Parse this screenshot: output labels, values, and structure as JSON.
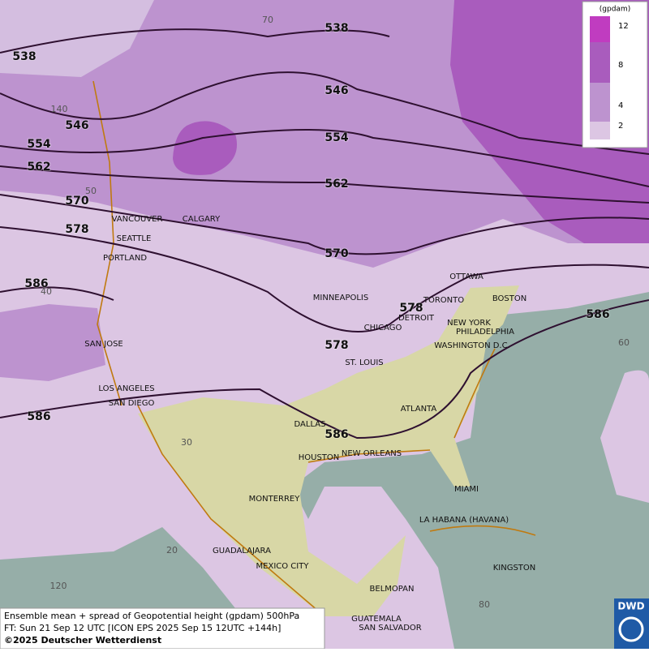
{
  "legend": {
    "unit": "(gpdam)",
    "levels": [
      12,
      8,
      4,
      2
    ]
  },
  "contour_labels": [
    538,
    538,
    546,
    546,
    554,
    554,
    562,
    562,
    570,
    570,
    578,
    578,
    578,
    586,
    586,
    586,
    586
  ],
  "cities": [
    "VANCOUVER",
    "CALGARY",
    "SEATTLE",
    "PORTLAND",
    "OTTAWA",
    "MINNEAPOLIS",
    "TORONTO",
    "BOSTON",
    "DETROIT",
    "NEW YORK",
    "PHILADELPHIA",
    "CHICAGO",
    "WASHINGTON D.C.",
    "SAN JOSE",
    "ST. LOUIS",
    "LOS ANGELES",
    "SAN DIEGO",
    "ATLANTA",
    "DALLAS",
    "HOUSTON",
    "NEW ORLEANS",
    "MIAMI",
    "MONTERREY",
    "LA HABANA (HAVANA)",
    "GUADALAJARA",
    "MEXICO CITY",
    "KINGSTON",
    "BELMOPAN",
    "GUATEMALA",
    "SAN SALVADOR"
  ],
  "grid_labels": [
    "70",
    "140",
    "50",
    "40",
    "30",
    "20",
    "120",
    "60",
    "80"
  ],
  "footer": [
    "Ensemble mean + spread of Geopotential height (gpdam) 500hPa",
    "FT: Sun 21 Sep 12 UTC [ICON EPS 2025 Sep 15 12UTC +144h]",
    "©2025 Deutscher Wetterdienst"
  ],
  "logo": "DWD"
}
